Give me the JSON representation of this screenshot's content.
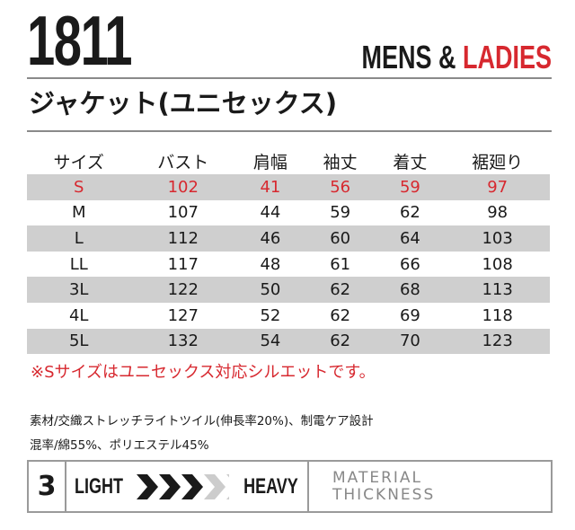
{
  "model": "1811",
  "gender": {
    "mens": "MENS &",
    "ladies": "LADIES"
  },
  "title": "ジャケット(ユニセックス)",
  "table": {
    "headers": [
      "サイズ",
      "バスト",
      "肩幅",
      "袖丈",
      "着丈",
      "裾廻り"
    ],
    "rows": [
      [
        "S",
        "102",
        "41",
        "56",
        "59",
        "97"
      ],
      [
        "M",
        "107",
        "44",
        "59",
        "62",
        "98"
      ],
      [
        "L",
        "112",
        "46",
        "60",
        "64",
        "103"
      ],
      [
        "LL",
        "117",
        "48",
        "61",
        "66",
        "108"
      ],
      [
        "3L",
        "122",
        "50",
        "62",
        "68",
        "113"
      ],
      [
        "4L",
        "127",
        "52",
        "62",
        "69",
        "118"
      ],
      [
        "5L",
        "132",
        "54",
        "62",
        "70",
        "123"
      ]
    ]
  },
  "note": "※Sサイズはユニセックス対応シルエットです。",
  "material": [
    "素材/交織ストレッチライトツイル(伸長率20%)、制電ケア設計",
    "混率/綿55%、ポリエステル45%"
  ],
  "thickness": {
    "level": "3",
    "max": 6,
    "light": "LIGHT",
    "heavy": "HEAVY",
    "label1": "MATERIAL",
    "label2": "THICKNESS",
    "active_color": "#1a1a1a",
    "inactive_color": "#cccccc"
  }
}
